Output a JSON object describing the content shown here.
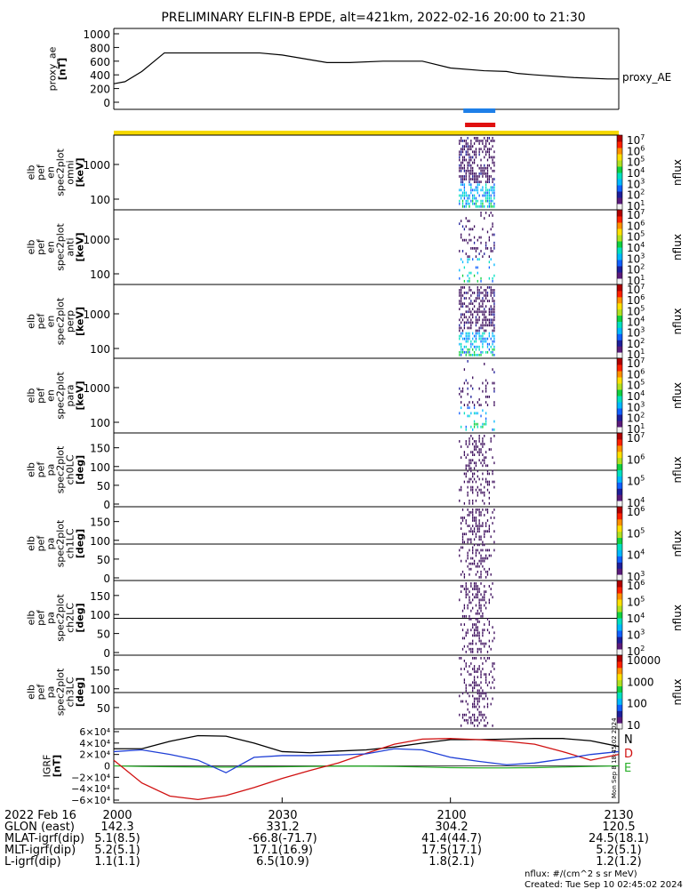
{
  "title": "PRELIMINARY ELFIN-B EPDE, alt=421km, 2022-02-16 20:00 to 21:30",
  "colors": {
    "frame": "#000000",
    "status_yellow": "#f5d800",
    "bar_blue": "#1e7fe8",
    "bar_red": "#e01010",
    "bx": "#000000",
    "by": "#1f3fd6",
    "bz": "#d01010",
    "bmag": "#2ab02a",
    "spec_main": "#3a0a5a"
  },
  "colorbar_colors": [
    "#f2f2f2",
    "#5a1a7a",
    "#1e1e9a",
    "#1060ff",
    "#00b8ff",
    "#00e0c0",
    "#10d040",
    "#b0e020",
    "#ffe000",
    "#ff9000",
    "#ff2000",
    "#b00000"
  ],
  "panels": [
    {
      "id": "proxy_ae",
      "ylabel_lines": [
        "proxy_ae",
        "[nT]"
      ],
      "right_label": "proxy_AE",
      "yticks": [
        "1000",
        "800",
        "600",
        "400",
        "200",
        "0"
      ]
    },
    {
      "id": "en_omni",
      "ylabel_lines": [
        "elb",
        "pef",
        "en",
        "spec2plot",
        "omni",
        "[keV]"
      ],
      "yticks": [
        "1000",
        "100"
      ],
      "cb_label": "nflux",
      "cb_ticks": [
        {
          "b": "10",
          "e": "7"
        },
        {
          "b": "10",
          "e": "6"
        },
        {
          "b": "10",
          "e": "5"
        },
        {
          "b": "10",
          "e": "4"
        },
        {
          "b": "10",
          "e": "3"
        },
        {
          "b": "10",
          "e": "2"
        },
        {
          "b": "10",
          "e": "1"
        }
      ]
    },
    {
      "id": "en_anti",
      "ylabel_lines": [
        "elb",
        "pef",
        "en",
        "spec2plot",
        "anti",
        "[keV]"
      ],
      "yticks": [
        "1000",
        "100"
      ],
      "cb_label": "nflux",
      "cb_ticks": [
        {
          "b": "10",
          "e": "7"
        },
        {
          "b": "10",
          "e": "6"
        },
        {
          "b": "10",
          "e": "5"
        },
        {
          "b": "10",
          "e": "4"
        },
        {
          "b": "10",
          "e": "3"
        },
        {
          "b": "10",
          "e": "2"
        },
        {
          "b": "10",
          "e": "1"
        }
      ]
    },
    {
      "id": "en_perp",
      "ylabel_lines": [
        "elb",
        "pef",
        "en",
        "spec2plot",
        "perp",
        "[keV]"
      ],
      "yticks": [
        "1000",
        "100"
      ],
      "cb_label": "nflux",
      "cb_ticks": [
        {
          "b": "10",
          "e": "7"
        },
        {
          "b": "10",
          "e": "6"
        },
        {
          "b": "10",
          "e": "5"
        },
        {
          "b": "10",
          "e": "4"
        },
        {
          "b": "10",
          "e": "3"
        },
        {
          "b": "10",
          "e": "2"
        },
        {
          "b": "10",
          "e": "1"
        }
      ]
    },
    {
      "id": "en_para",
      "ylabel_lines": [
        "elb",
        "pef",
        "en",
        "spec2plot",
        "para",
        "[keV]"
      ],
      "yticks": [
        "1000",
        "100"
      ],
      "cb_label": "nflux",
      "cb_ticks": [
        {
          "b": "10",
          "e": "7"
        },
        {
          "b": "10",
          "e": "6"
        },
        {
          "b": "10",
          "e": "5"
        },
        {
          "b": "10",
          "e": "4"
        },
        {
          "b": "10",
          "e": "3"
        },
        {
          "b": "10",
          "e": "2"
        },
        {
          "b": "10",
          "e": "1"
        }
      ]
    },
    {
      "id": "pa_ch0",
      "ylabel_lines": [
        "elb",
        "pef",
        "pa",
        "spec2plot",
        "ch0LC",
        "[deg]"
      ],
      "yticks": [
        "150",
        "100",
        "50",
        "0"
      ],
      "cb_label": "nflux",
      "cb_ticks": [
        {
          "b": "10",
          "e": "7"
        },
        {
          "b": "10",
          "e": "6"
        },
        {
          "b": "10",
          "e": "5"
        },
        {
          "b": "10",
          "e": "4"
        }
      ]
    },
    {
      "id": "pa_ch1",
      "ylabel_lines": [
        "elb",
        "pef",
        "pa",
        "spec2plot",
        "ch1LC",
        "[deg]"
      ],
      "yticks": [
        "150",
        "100",
        "50",
        "0"
      ],
      "cb_label": "nflux",
      "cb_ticks": [
        {
          "b": "10",
          "e": "6"
        },
        {
          "b": "10",
          "e": "5"
        },
        {
          "b": "10",
          "e": "4"
        },
        {
          "b": "10",
          "e": "3"
        }
      ]
    },
    {
      "id": "pa_ch2",
      "ylabel_lines": [
        "elb",
        "pef",
        "pa",
        "spec2plot",
        "ch2LC",
        "[deg]"
      ],
      "yticks": [
        "150",
        "100",
        "50",
        "0"
      ],
      "cb_label": "nflux",
      "cb_ticks": [
        {
          "b": "10",
          "e": "6"
        },
        {
          "b": "10",
          "e": "5"
        },
        {
          "b": "10",
          "e": "4"
        },
        {
          "b": "10",
          "e": "3"
        },
        {
          "b": "10",
          "e": "2"
        }
      ]
    },
    {
      "id": "pa_ch3",
      "ylabel_lines": [
        "elb",
        "pef",
        "pa",
        "spec2plot",
        "ch3LC",
        "[deg]"
      ],
      "yticks": [
        "150",
        "100",
        "50"
      ],
      "cb_label": "nflux",
      "cb_ticks": [
        {
          "b": "",
          "e": "",
          "t": "10000"
        },
        {
          "b": "",
          "e": "",
          "t": "1000"
        },
        {
          "b": "",
          "e": "",
          "t": "100"
        },
        {
          "b": "",
          "e": "",
          "t": "10"
        }
      ]
    },
    {
      "id": "igrf",
      "ylabel_lines": [
        "IGRF",
        "[nT]"
      ],
      "yticks": [
        "6×10⁴",
        "4×10⁴",
        "2×10⁴",
        "0",
        "−2×10⁴",
        "−4×10⁴",
        "−6×10⁴"
      ],
      "right_labels": [
        "N",
        "D",
        "E"
      ]
    }
  ],
  "stamp": "Mon Sep 8 18:45:02 2024",
  "footer": {
    "date_label": "2022 Feb 16",
    "times": [
      "2000",
      "2030",
      "2100",
      "2130"
    ],
    "rows": [
      {
        "label": "GLON (east)",
        "values": [
          "142.3",
          "331.2",
          "304.2",
          "120.5"
        ]
      },
      {
        "label": "MLAT-igrf(dip)",
        "values": [
          "5.1(8.5)",
          "-66.8(-71.7)",
          "41.4(44.7)",
          "24.5(18.1)"
        ]
      },
      {
        "label": "MLT-igrf(dip)",
        "values": [
          "5.2(5.1)",
          "17.1(16.9)",
          "17.5(17.1)",
          "5.2(5.1)"
        ]
      },
      {
        "label": "L-igrf(dip)",
        "values": [
          "1.1(1.1)",
          "6.5(10.9)",
          "1.8(2.1)",
          "1.2(1.2)"
        ]
      }
    ],
    "units_note": "nflux: #/(cm^2 s sr MeV)",
    "created": "Created: Tue Sep 10 02:45:02 2024"
  },
  "chart_data": [
    {
      "type": "line",
      "id": "proxy_ae",
      "ylim": [
        0,
        1000
      ],
      "xlabel": "",
      "ylabel": "proxy_ae [nT]",
      "x": [
        0,
        2,
        5,
        9,
        12,
        18,
        26,
        30,
        38,
        42,
        48,
        55,
        60,
        66,
        70,
        72,
        75,
        82,
        88,
        90
      ],
      "series": [
        {
          "name": "proxy_AE",
          "values": [
            270,
            300,
            450,
            720,
            720,
            720,
            720,
            690,
            580,
            580,
            600,
            600,
            500,
            460,
            450,
            420,
            400,
            360,
            340,
            340
          ]
        }
      ]
    },
    {
      "type": "heatmap",
      "id": "spectrograms",
      "x_range_min": [
        0,
        90
      ],
      "active_interval_min": [
        62,
        68
      ],
      "note_bars": [
        "blue",
        "red"
      ]
    },
    {
      "type": "line",
      "id": "igrf",
      "ylim": [
        -60000,
        60000
      ],
      "x": [
        0,
        5,
        10,
        15,
        20,
        25,
        30,
        35,
        40,
        45,
        50,
        55,
        60,
        65,
        70,
        75,
        80,
        85,
        90
      ],
      "series": [
        {
          "name": "N",
          "values": [
            30000,
            30000,
            43000,
            53000,
            52000,
            40000,
            25000,
            23000,
            26000,
            28000,
            33000,
            40000,
            46000,
            46000,
            47000,
            48000,
            48000,
            44000,
            34000
          ]
        },
        {
          "name": "E",
          "values": [
            0,
            -1000,
            -1500,
            -2000,
            -2200,
            -2000,
            -1500,
            -1000,
            -500,
            -500,
            -1000,
            -2000,
            -3000,
            -3500,
            -3500,
            -3000,
            -2000,
            -1000,
            0
          ]
        },
        {
          "name": "D",
          "values": [
            10000,
            -30000,
            -53000,
            -59000,
            -52000,
            -38000,
            -22000,
            -8000,
            5000,
            22000,
            38000,
            47000,
            48000,
            46000,
            43000,
            38000,
            25000,
            10000,
            20000
          ]
        },
        {
          "name": "",
          "values": [
            25000,
            28000,
            20000,
            10000,
            -12000,
            15000,
            18000,
            18000,
            19000,
            21000,
            30000,
            28000,
            15000,
            8000,
            2000,
            5000,
            12000,
            20000,
            25000
          ]
        }
      ]
    }
  ]
}
